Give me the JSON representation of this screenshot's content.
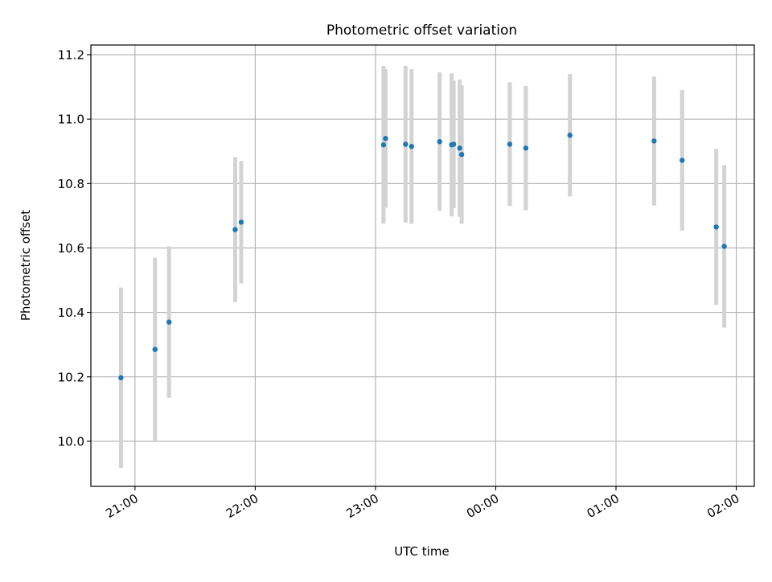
{
  "chart_data": {
    "type": "scatter",
    "title": "Photometric offset variation",
    "xlabel": "UTC time",
    "ylabel": "Photometric offset",
    "x_tick_labels": [
      "21:00",
      "22:00",
      "23:00",
      "00:00",
      "01:00",
      "02:00"
    ],
    "y_tick_labels": [
      "10.0",
      "10.2",
      "10.4",
      "10.6",
      "10.8",
      "11.0",
      "11.2"
    ],
    "xlim": [
      "20:38",
      "02:09"
    ],
    "ylim": [
      9.86,
      11.23
    ],
    "grid": true,
    "legend": "none",
    "colors": {
      "points": "#1f77b4",
      "error_bars": "#d3d3d3",
      "grid": "#b0b0b0"
    },
    "points": [
      {
        "t": "20:53",
        "y": 10.197,
        "yerr": 0.28
      },
      {
        "t": "21:10",
        "y": 10.285,
        "yerr": 0.285
      },
      {
        "t": "21:17",
        "y": 10.37,
        "yerr": 0.235
      },
      {
        "t": "21:50",
        "y": 10.657,
        "yerr": 0.225
      },
      {
        "t": "21:53",
        "y": 10.68,
        "yerr": 0.19
      },
      {
        "t": "23:04",
        "y": 10.92,
        "yerr": 0.245
      },
      {
        "t": "23:05",
        "y": 10.94,
        "yerr": 0.215
      },
      {
        "t": "23:15",
        "y": 10.922,
        "yerr": 0.243
      },
      {
        "t": "23:18",
        "y": 10.915,
        "yerr": 0.24
      },
      {
        "t": "23:32",
        "y": 10.93,
        "yerr": 0.215
      },
      {
        "t": "23:38",
        "y": 10.92,
        "yerr": 0.222
      },
      {
        "t": "23:39",
        "y": 10.922,
        "yerr": 0.198
      },
      {
        "t": "23:42",
        "y": 10.91,
        "yerr": 0.213
      },
      {
        "t": "23:43",
        "y": 10.89,
        "yerr": 0.215
      },
      {
        "t": "00:07",
        "y": 10.922,
        "yerr": 0.192
      },
      {
        "t": "00:15",
        "y": 10.91,
        "yerr": 0.193
      },
      {
        "t": "00:37",
        "y": 10.95,
        "yerr": 0.19
      },
      {
        "t": "01:19",
        "y": 10.932,
        "yerr": 0.2
      },
      {
        "t": "01:33",
        "y": 10.872,
        "yerr": 0.218
      },
      {
        "t": "01:50",
        "y": 10.665,
        "yerr": 0.242
      },
      {
        "t": "01:54",
        "y": 10.605,
        "yerr": 0.252
      }
    ]
  }
}
